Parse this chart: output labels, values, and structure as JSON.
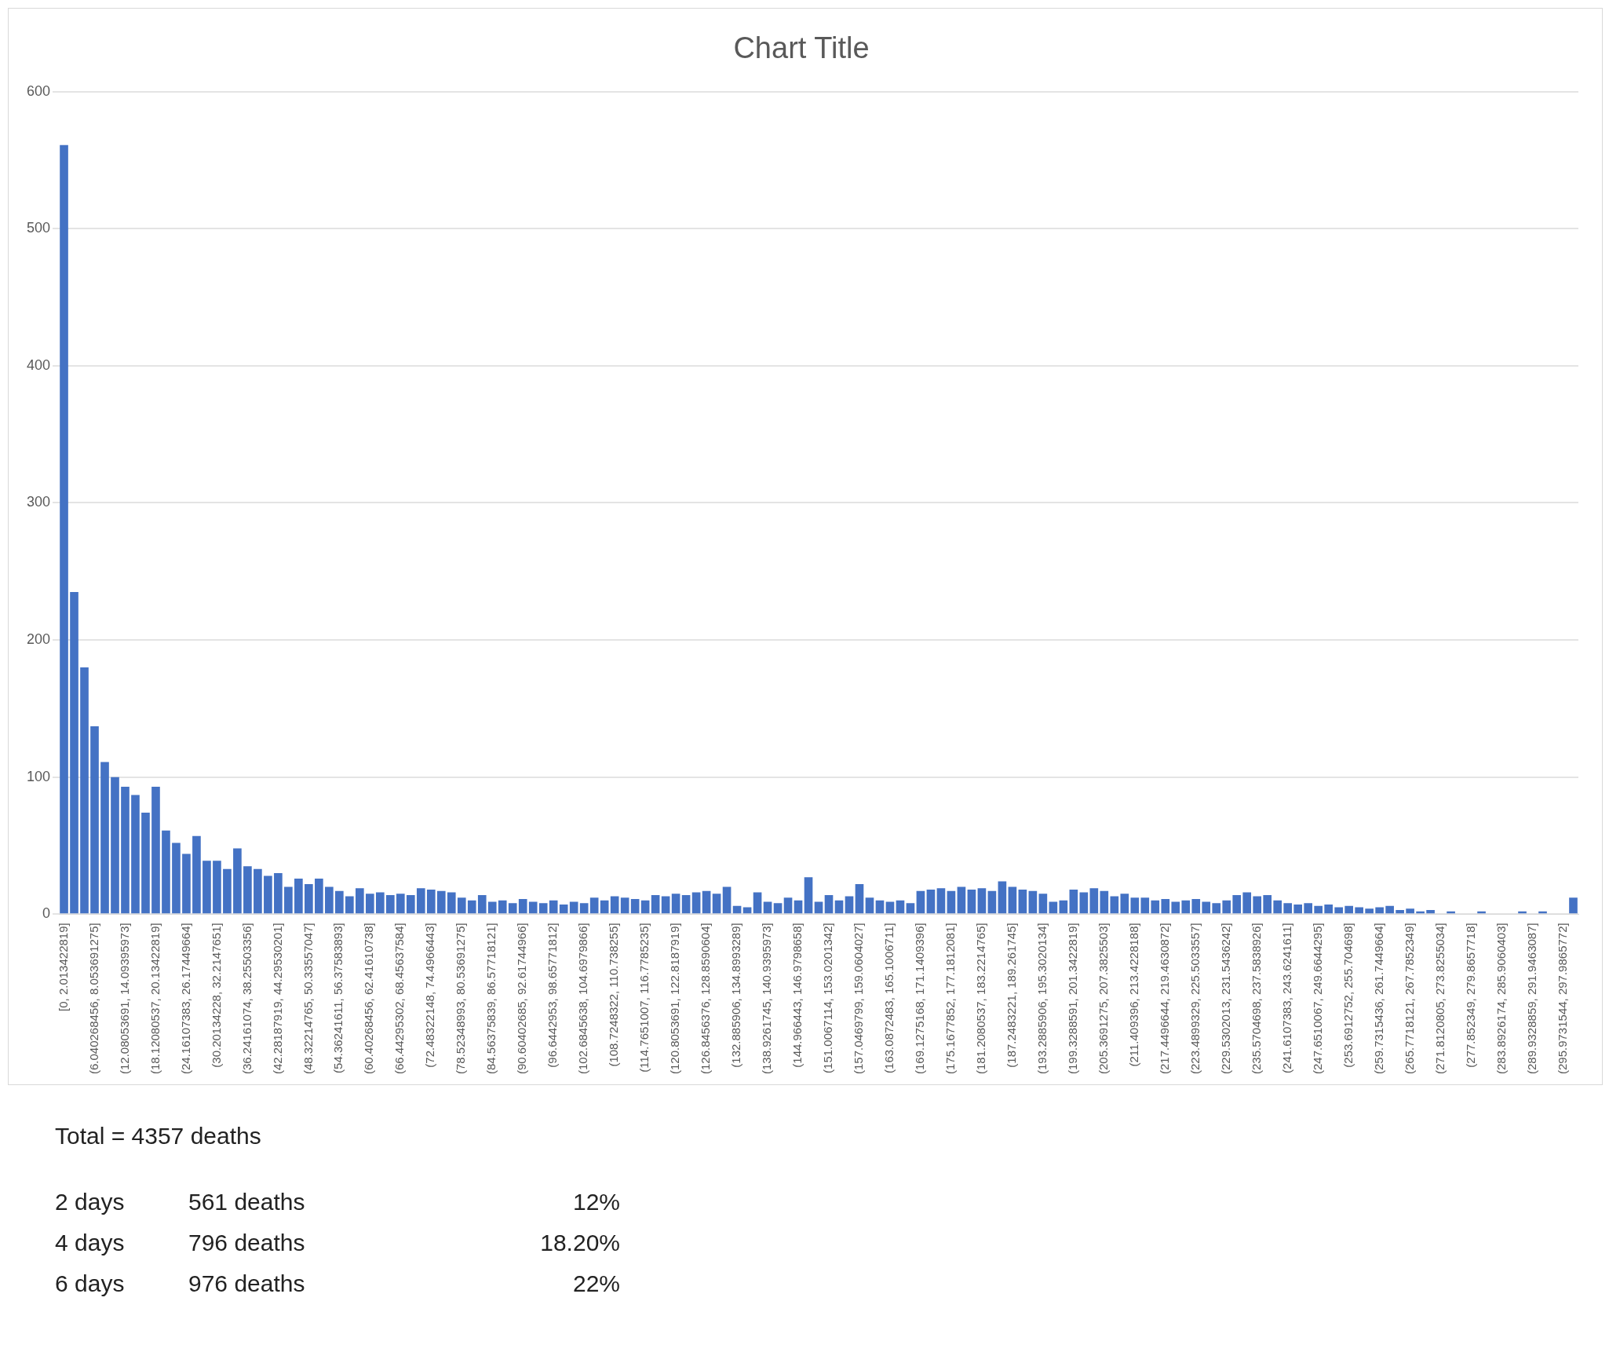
{
  "chart_data": {
    "type": "bar",
    "title": "Chart Title",
    "categories": [
      "[0, 2.013422819]",
      null,
      null,
      "(6.040268456, 8.053691275]",
      null,
      null,
      "(12.08053691, 14.09395973]",
      null,
      null,
      "(18.12080537, 20.13422819]",
      null,
      null,
      "(24.16107383, 26.17449664]",
      null,
      null,
      "(30.20134228, 32.2147651]",
      null,
      null,
      "(36.24161074, 38.25503356]",
      null,
      null,
      "(42.28187919, 44.29530201]",
      null,
      null,
      "(48.32214765, 50.33557047]",
      null,
      null,
      "(54.36241611, 56.37583893]",
      null,
      null,
      "(60.40268456, 62.41610738]",
      null,
      null,
      "(66.44295302, 68.45637584]",
      null,
      null,
      "(72.48322148, 74.4966443]",
      null,
      null,
      "(78.52348993, 80.53691275]",
      null,
      null,
      "(84.56375839, 86.57718121]",
      null,
      null,
      "(90.60402685, 92.61744966]",
      null,
      null,
      "(96.6442953, 98.65771812]",
      null,
      null,
      "(102.6845638, 104.6979866]",
      null,
      null,
      "(108.7248322, 110.738255]",
      null,
      null,
      "(114.7651007, 116.7785235]",
      null,
      null,
      "(120.8053691, 122.8187919]",
      null,
      null,
      "(126.8456376, 128.8590604]",
      null,
      null,
      "(132.885906, 134.8993289]",
      null,
      null,
      "(138.9261745, 140.9395973]",
      null,
      null,
      "(144.966443, 146.9798658]",
      null,
      null,
      "(151.0067114, 153.0201342]",
      null,
      null,
      "(157.0469799, 159.0604027]",
      null,
      null,
      "(163.0872483, 165.1006711]",
      null,
      null,
      "(169.1275168, 171.1409396]",
      null,
      null,
      "(175.1677852, 177.1812081]",
      null,
      null,
      "(181.2080537, 183.2214765]",
      null,
      null,
      "(187.2483221, 189.261745]",
      null,
      null,
      "(193.2885906, 195.3020134]",
      null,
      null,
      "(199.3288591, 201.3422819]",
      null,
      null,
      "(205.3691275, 207.3825503]",
      null,
      null,
      "(211.409396, 213.4228188]",
      null,
      null,
      "(217.4496644, 219.4630872]",
      null,
      null,
      "(223.4899329, 225.5033557]",
      null,
      null,
      "(229.5302013, 231.5436242]",
      null,
      null,
      "(235.5704698, 237.5838926]",
      null,
      null,
      "(241.6107383, 243.6241611]",
      null,
      null,
      "(247.6510067, 249.6644295]",
      null,
      null,
      "(253.6912752, 255.704698]",
      null,
      null,
      "(259.7315436, 261.7449664]",
      null,
      null,
      "(265.7718121, 267.7852349]",
      null,
      null,
      "(271.8120805, 273.8255034]",
      null,
      null,
      "(277.852349, 279.8657718]",
      null,
      null,
      "(283.8926174, 285.9060403]",
      null,
      null,
      "(289.9328859, 291.9463087]",
      null,
      null,
      "(295.9731544, 297.9865772]",
      null
    ],
    "values": [
      561,
      235,
      180,
      137,
      111,
      100,
      93,
      87,
      74,
      93,
      61,
      52,
      44,
      57,
      39,
      39,
      33,
      48,
      35,
      33,
      28,
      30,
      20,
      26,
      22,
      26,
      20,
      17,
      13,
      19,
      15,
      16,
      14,
      15,
      14,
      19,
      18,
      17,
      16,
      12,
      10,
      14,
      9,
      10,
      8,
      11,
      9,
      8,
      10,
      7,
      9,
      8,
      12,
      10,
      13,
      12,
      11,
      10,
      14,
      13,
      15,
      14,
      16,
      17,
      15,
      20,
      6,
      5,
      16,
      9,
      8,
      12,
      10,
      27,
      9,
      14,
      10,
      13,
      22,
      12,
      10,
      9,
      10,
      8,
      17,
      18,
      19,
      17,
      20,
      18,
      19,
      17,
      24,
      20,
      18,
      17,
      15,
      9,
      10,
      18,
      16,
      19,
      17,
      13,
      15,
      12,
      12,
      10,
      11,
      9,
      10,
      11,
      9,
      8,
      10,
      14,
      16,
      13,
      14,
      10,
      8,
      7,
      8,
      6,
      7,
      5,
      6,
      5,
      4,
      5,
      6,
      3,
      4,
      2,
      3,
      0,
      2,
      0,
      0,
      2,
      0,
      0,
      0,
      2,
      0,
      2,
      0,
      0,
      12
    ],
    "color": "#4472c4",
    "ylim": [
      0,
      600
    ],
    "yticks": [
      0,
      100,
      200,
      300,
      400,
      500,
      600
    ],
    "grid": "y",
    "annotations": [
      "Total = 4357 deaths",
      "2 days",
      "561 deaths",
      "12%",
      "4 days",
      "796 deaths",
      "18.20%",
      "6 days",
      "976 deaths",
      "22%"
    ]
  }
}
